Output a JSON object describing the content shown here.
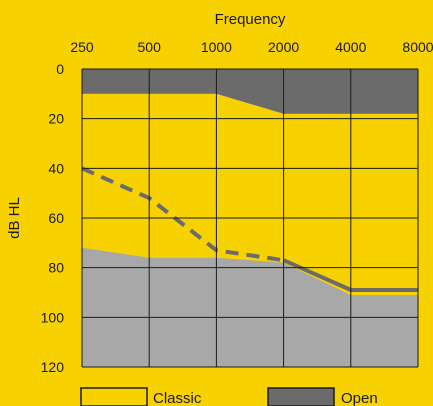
{
  "chart_data": {
    "type": "area",
    "title": "",
    "xlabel": "Frequency",
    "ylabel": "dB HL",
    "x_scale": "log",
    "x_ticks": [
      250,
      500,
      1000,
      2000,
      4000,
      8000
    ],
    "x_tick_labels": [
      "250",
      "500",
      "1000",
      "2000",
      "4000",
      "8000"
    ],
    "y_ticks": [
      0,
      20,
      40,
      60,
      80,
      100,
      120
    ],
    "y_tick_labels": [
      "0",
      "20",
      "40",
      "60",
      "80",
      "100",
      "120"
    ],
    "xlim": [
      250,
      8000
    ],
    "ylim": [
      0,
      120
    ],
    "y_inverted": true,
    "grid": true,
    "legend_position": "bottom",
    "regions": [
      {
        "name": "Classic",
        "upper": [
          [
            250,
            10
          ],
          [
            1000,
            10
          ],
          [
            2000,
            18
          ],
          [
            8000,
            18
          ]
        ],
        "lower": [
          [
            250,
            72
          ],
          [
            500,
            76
          ],
          [
            1000,
            76
          ],
          [
            2000,
            78
          ],
          [
            4000,
            91
          ],
          [
            8000,
            91
          ]
        ],
        "color": "#f8d200"
      },
      {
        "name": "Open",
        "upper": [
          [
            250,
            0
          ],
          [
            8000,
            0
          ]
        ],
        "lower": [
          [
            250,
            10
          ],
          [
            1000,
            10
          ],
          [
            2000,
            18
          ],
          [
            8000,
            18
          ]
        ],
        "color": "#6b6b6b"
      }
    ],
    "open_lower_boundary": [
      [
        250,
        40
      ],
      [
        500,
        52
      ],
      [
        1000,
        73
      ],
      [
        2000,
        77
      ],
      [
        4000,
        89
      ],
      [
        8000,
        89
      ]
    ],
    "colors": {
      "background": "#f8d200",
      "plot_fill": "#a8a8a8",
      "open": "#6b6b6b",
      "grid": "#1a1a1a"
    }
  },
  "legend": {
    "classic_label": "Classic",
    "open_label": "Open"
  }
}
